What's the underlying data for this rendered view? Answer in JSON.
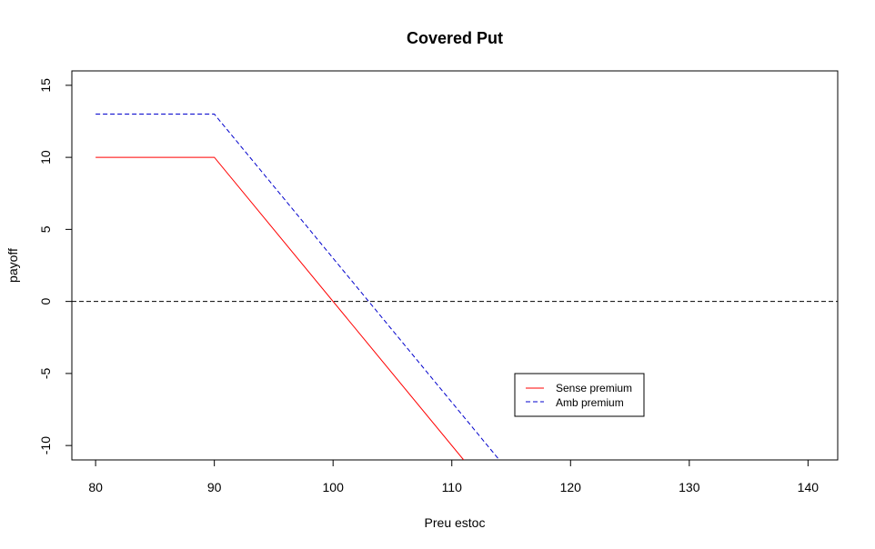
{
  "chart_data": {
    "type": "line",
    "title": "Covered Put",
    "xlabel": "Preu estoc",
    "ylabel": "payoff",
    "xlim": [
      78,
      142.5
    ],
    "ylim": [
      -11,
      16
    ],
    "xticks": [
      80,
      90,
      100,
      110,
      120,
      130,
      140
    ],
    "yticks": [
      -10,
      -5,
      0,
      5,
      10,
      15
    ],
    "grid": false,
    "legend_position": "bottom-right",
    "series": [
      {
        "name": "Sense premium",
        "color": "#ff0000",
        "style": "solid",
        "x": [
          80,
          90,
          111
        ],
        "y": [
          10,
          10,
          -11
        ]
      },
      {
        "name": "Amb premium",
        "color": "#0000cc",
        "style": "dashed",
        "x": [
          80,
          90,
          114
        ],
        "y": [
          13,
          13,
          -11
        ]
      }
    ],
    "reference_lines": [
      {
        "orientation": "horizontal",
        "y": 0,
        "color": "#000000",
        "style": "dashed"
      }
    ]
  }
}
